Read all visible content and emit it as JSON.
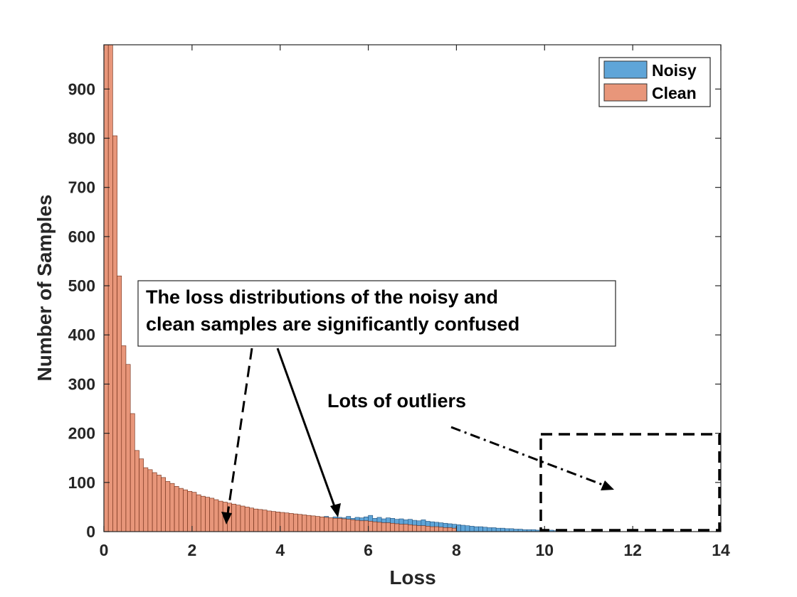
{
  "chart_data": {
    "type": "bar",
    "xlabel": "Loss",
    "ylabel": "Number of Samples",
    "xlim": [
      0,
      14
    ],
    "ylim": [
      0,
      990
    ],
    "xticks": [
      0,
      2,
      4,
      6,
      8,
      10,
      12,
      14
    ],
    "yticks": [
      0,
      100,
      200,
      300,
      400,
      500,
      600,
      700,
      800,
      900
    ],
    "bin_width": 0.1,
    "legend_position": "top-right",
    "series": [
      {
        "name": "Noisy",
        "color": "#5FA5D8",
        "bin_start": 2.5,
        "values": [
          14,
          15,
          16,
          15,
          17,
          18,
          17,
          19,
          18,
          20,
          21,
          22,
          23,
          22,
          24,
          26,
          25,
          27,
          28,
          26,
          29,
          28,
          30,
          27,
          29,
          31,
          28,
          30,
          29,
          28,
          31,
          27,
          29,
          28,
          30,
          33,
          27,
          29,
          26,
          28,
          27,
          25,
          26,
          24,
          25,
          23,
          22,
          24,
          21,
          20,
          19,
          18,
          17,
          16,
          15,
          14,
          13,
          12,
          11,
          10,
          10,
          9,
          8,
          8,
          7,
          7,
          6,
          6,
          5,
          5,
          4,
          4,
          4,
          3,
          3,
          3,
          3,
          2,
          2,
          2
        ]
      },
      {
        "name": "Clean",
        "color": "#E8967A",
        "bin_start": 0,
        "values": [
          990,
          990,
          805,
          520,
          378,
          340,
          240,
          165,
          148,
          130,
          126,
          120,
          115,
          110,
          102,
          98,
          92,
          88,
          85,
          82,
          80,
          75,
          72,
          70,
          68,
          65,
          62,
          60,
          58,
          56,
          54,
          52,
          50,
          48,
          46,
          45,
          44,
          42,
          41,
          40,
          39,
          38,
          37,
          36,
          35,
          34,
          33,
          32,
          31,
          30,
          29,
          28,
          27,
          27,
          26,
          25,
          24,
          23,
          22,
          22,
          21,
          20,
          19,
          18,
          18,
          17,
          16,
          15,
          15,
          14,
          13,
          12,
          12,
          11,
          10,
          10,
          9,
          8,
          8,
          7
        ]
      }
    ],
    "annotations": [
      {
        "text_lines": [
          "The loss distributions of the noisy and",
          "clean samples are significantly confused"
        ]
      },
      {
        "text": "Lots of outliers"
      }
    ]
  }
}
